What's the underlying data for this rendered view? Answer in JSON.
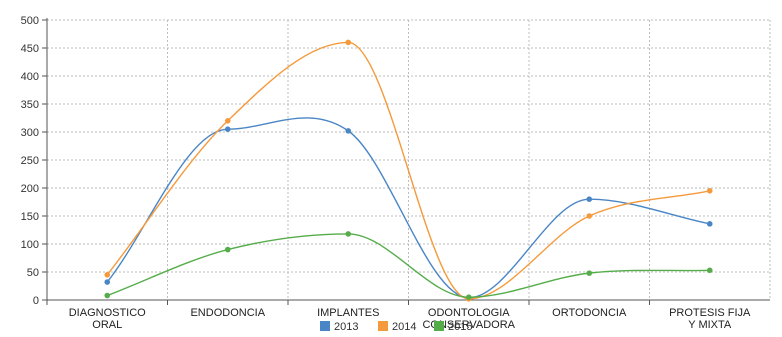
{
  "chart_data": {
    "type": "line",
    "title": "",
    "xlabel": "",
    "ylabel": "",
    "ylim": [
      0,
      500
    ],
    "yticks": [
      0,
      50,
      100,
      150,
      200,
      250,
      300,
      350,
      400,
      450,
      500
    ],
    "grid": true,
    "legend_position": "bottom-center",
    "categories": [
      [
        "DIAGNOSTICO",
        "ORAL"
      ],
      [
        "ENDODONCIA"
      ],
      [
        "IMPLANTES"
      ],
      [
        "ODONTOLOGIA",
        "CONSERVADORA"
      ],
      [
        "ORTODONCIA"
      ],
      [
        "PROTESIS FIJA",
        "Y MIXTA"
      ]
    ],
    "series": [
      {
        "name": "2013",
        "color": "#4a86c5",
        "values": [
          32,
          305,
          302,
          4,
          180,
          136
        ]
      },
      {
        "name": "2014",
        "color": "#f59a3c",
        "values": [
          45,
          320,
          460,
          2,
          150,
          195
        ]
      },
      {
        "name": "2015",
        "color": "#55ad4a",
        "values": [
          8,
          90,
          118,
          5,
          48,
          53
        ]
      }
    ]
  }
}
